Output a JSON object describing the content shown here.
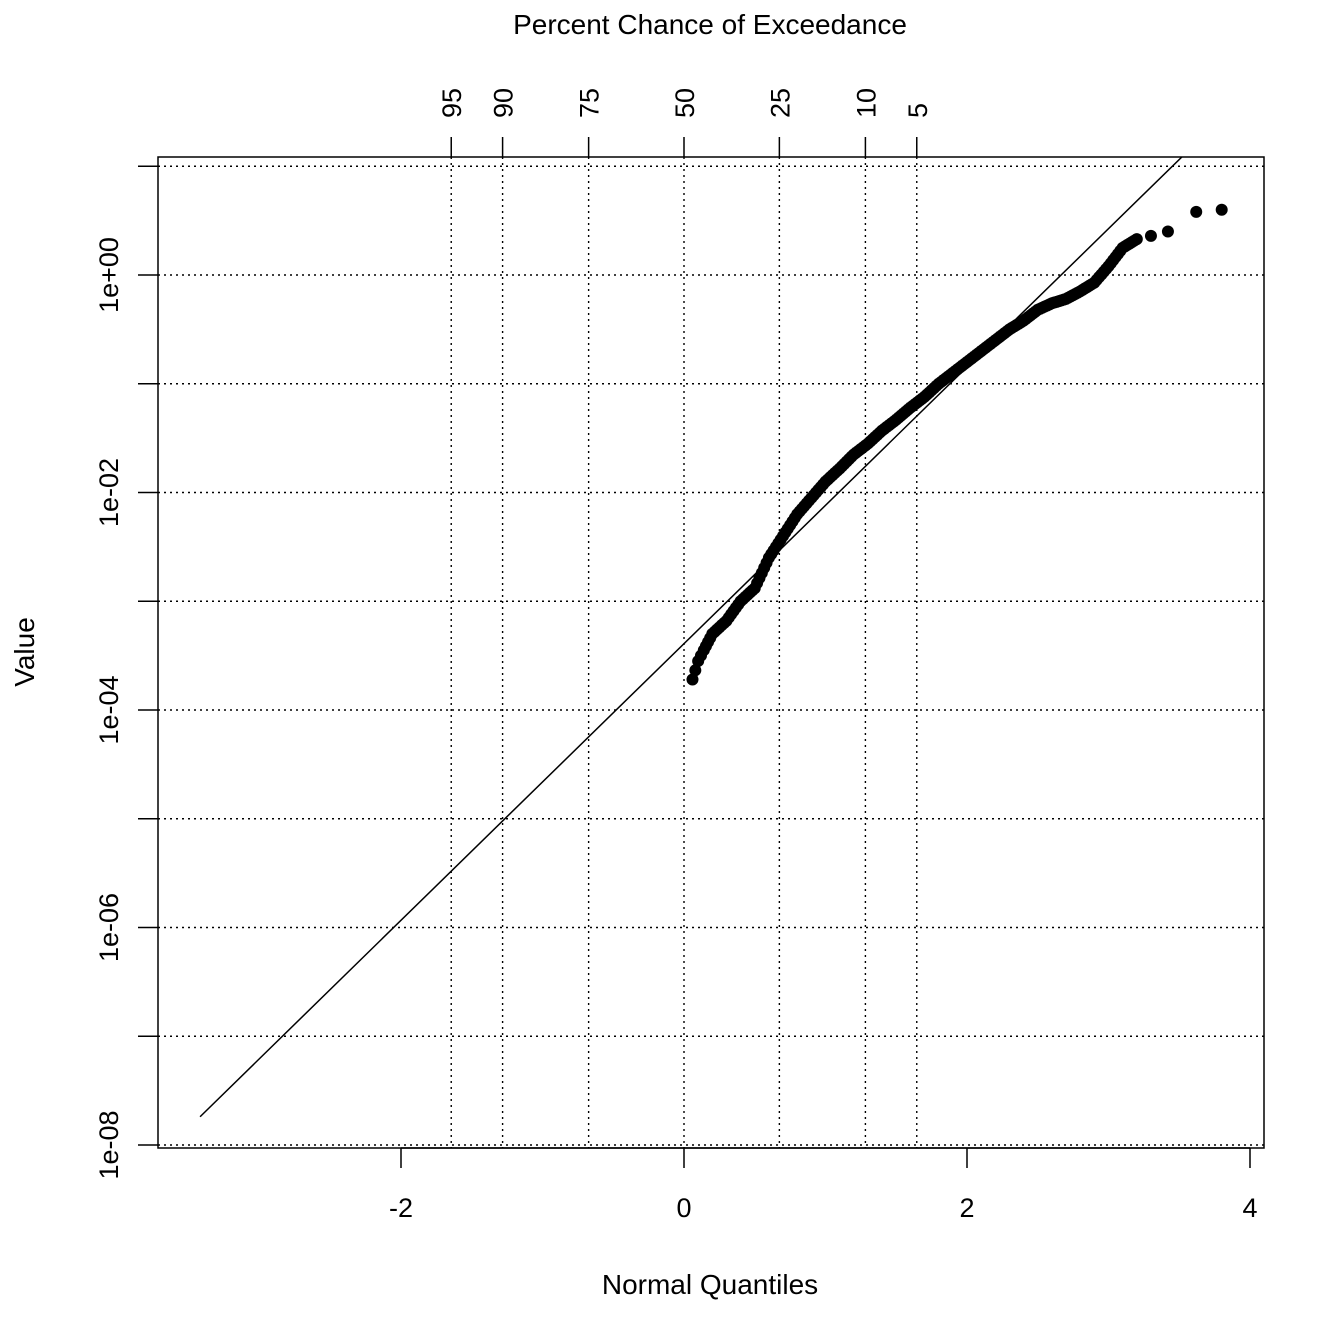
{
  "chart_data": {
    "type": "scatter",
    "title": "",
    "xlabel": "Normal Quantiles",
    "ylabel": "Value",
    "top_axis_label": "Percent Chance of Exceedance",
    "x_scale": "linear",
    "y_scale": "log10",
    "xlim": [
      -3.6,
      4.1
    ],
    "ylim_log10": [
      -8.02,
      1.05
    ],
    "x_ticks": [
      {
        "value": -2,
        "label": "-2"
      },
      {
        "value": 0,
        "label": "0"
      },
      {
        "value": 2,
        "label": "2"
      },
      {
        "value": 4,
        "label": "4"
      }
    ],
    "y_ticks_labeled": [
      {
        "log10": 0,
        "label": "1e+00"
      },
      {
        "log10": -2,
        "label": "1e-02"
      },
      {
        "log10": -4,
        "label": "1e-04"
      },
      {
        "log10": -6,
        "label": "1e-06"
      },
      {
        "log10": -8,
        "label": "1e-08"
      }
    ],
    "y_ticks_minor_log10": [
      1,
      -1,
      -3,
      -5,
      -7
    ],
    "top_ticks": [
      {
        "z": -1.645,
        "label": "95"
      },
      {
        "z": -1.282,
        "label": "90"
      },
      {
        "z": -0.674,
        "label": "75"
      },
      {
        "z": 0.0,
        "label": "50"
      },
      {
        "z": 0.674,
        "label": "25"
      },
      {
        "z": 1.282,
        "label": "10"
      },
      {
        "z": 1.645,
        "label": "5"
      }
    ],
    "grid": {
      "horizontal_log10": [
        1,
        0,
        -1,
        -2,
        -3,
        -4,
        -5,
        -6,
        -7,
        -8
      ],
      "vertical_z": [
        -1.645,
        -1.282,
        -0.674,
        0.0,
        0.674,
        1.282,
        1.645
      ],
      "style": "dotted"
    },
    "fit_line": {
      "x": [
        -3.42,
        3.53
      ],
      "log10_y": [
        -7.74,
        1.1
      ]
    },
    "points_outline": {
      "x": [
        0.06,
        0.1,
        0.14,
        0.2,
        0.3,
        0.4,
        0.5,
        0.6,
        0.7,
        0.8,
        0.9,
        1.0,
        1.1,
        1.2,
        1.3,
        1.4,
        1.5,
        1.6,
        1.7,
        1.8,
        1.9,
        2.0,
        2.1,
        2.2,
        2.3,
        2.4,
        2.5,
        2.6,
        2.7,
        2.8,
        2.9,
        3.0,
        3.1,
        3.2,
        3.3,
        3.42,
        3.62,
        3.8
      ],
      "log10_y": [
        -3.72,
        -3.55,
        -3.45,
        -3.3,
        -3.18,
        -3.0,
        -2.88,
        -2.6,
        -2.4,
        -2.2,
        -2.05,
        -1.9,
        -1.78,
        -1.65,
        -1.55,
        -1.43,
        -1.33,
        -1.22,
        -1.12,
        -1.0,
        -0.9,
        -0.8,
        -0.7,
        -0.6,
        -0.5,
        -0.42,
        -0.32,
        -0.26,
        -0.22,
        -0.15,
        -0.07,
        0.08,
        0.25,
        0.33,
        0.36,
        0.4,
        0.58,
        0.6
      ]
    },
    "marker_color": "#000000"
  }
}
